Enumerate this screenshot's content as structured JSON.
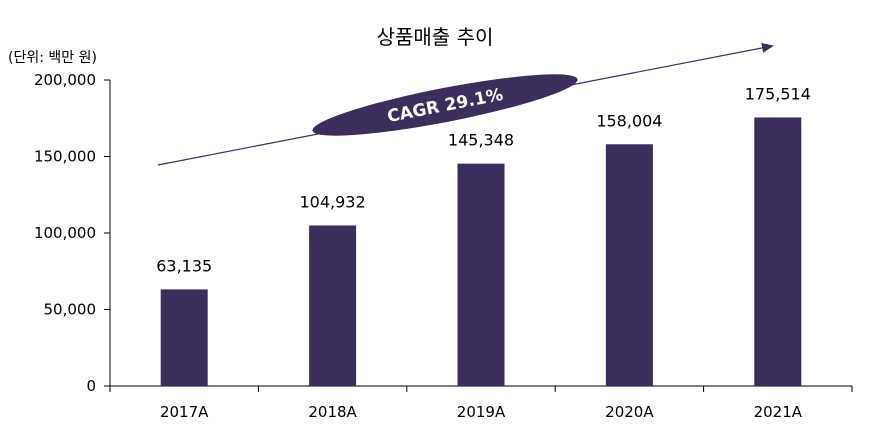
{
  "chart_data": {
    "type": "bar",
    "title": "상품매출 추이",
    "unit_label": "(단위: 백만 원)",
    "categories": [
      "2017A",
      "2018A",
      "2019A",
      "2020A",
      "2021A"
    ],
    "values": [
      63135,
      104932,
      145348,
      158004,
      175514
    ],
    "data_labels": [
      "63,135",
      "104,932",
      "145,348",
      "158,004",
      "175,514"
    ],
    "ylim": [
      0,
      200000
    ],
    "yticks": [
      0,
      50000,
      100000,
      150000,
      200000
    ],
    "ytick_labels": [
      "0",
      "50,000",
      "100,000",
      "150,000",
      "200,000"
    ],
    "annotation": "CAGR 29.1%",
    "grid": false,
    "bar_color": "#3b2e5c"
  }
}
